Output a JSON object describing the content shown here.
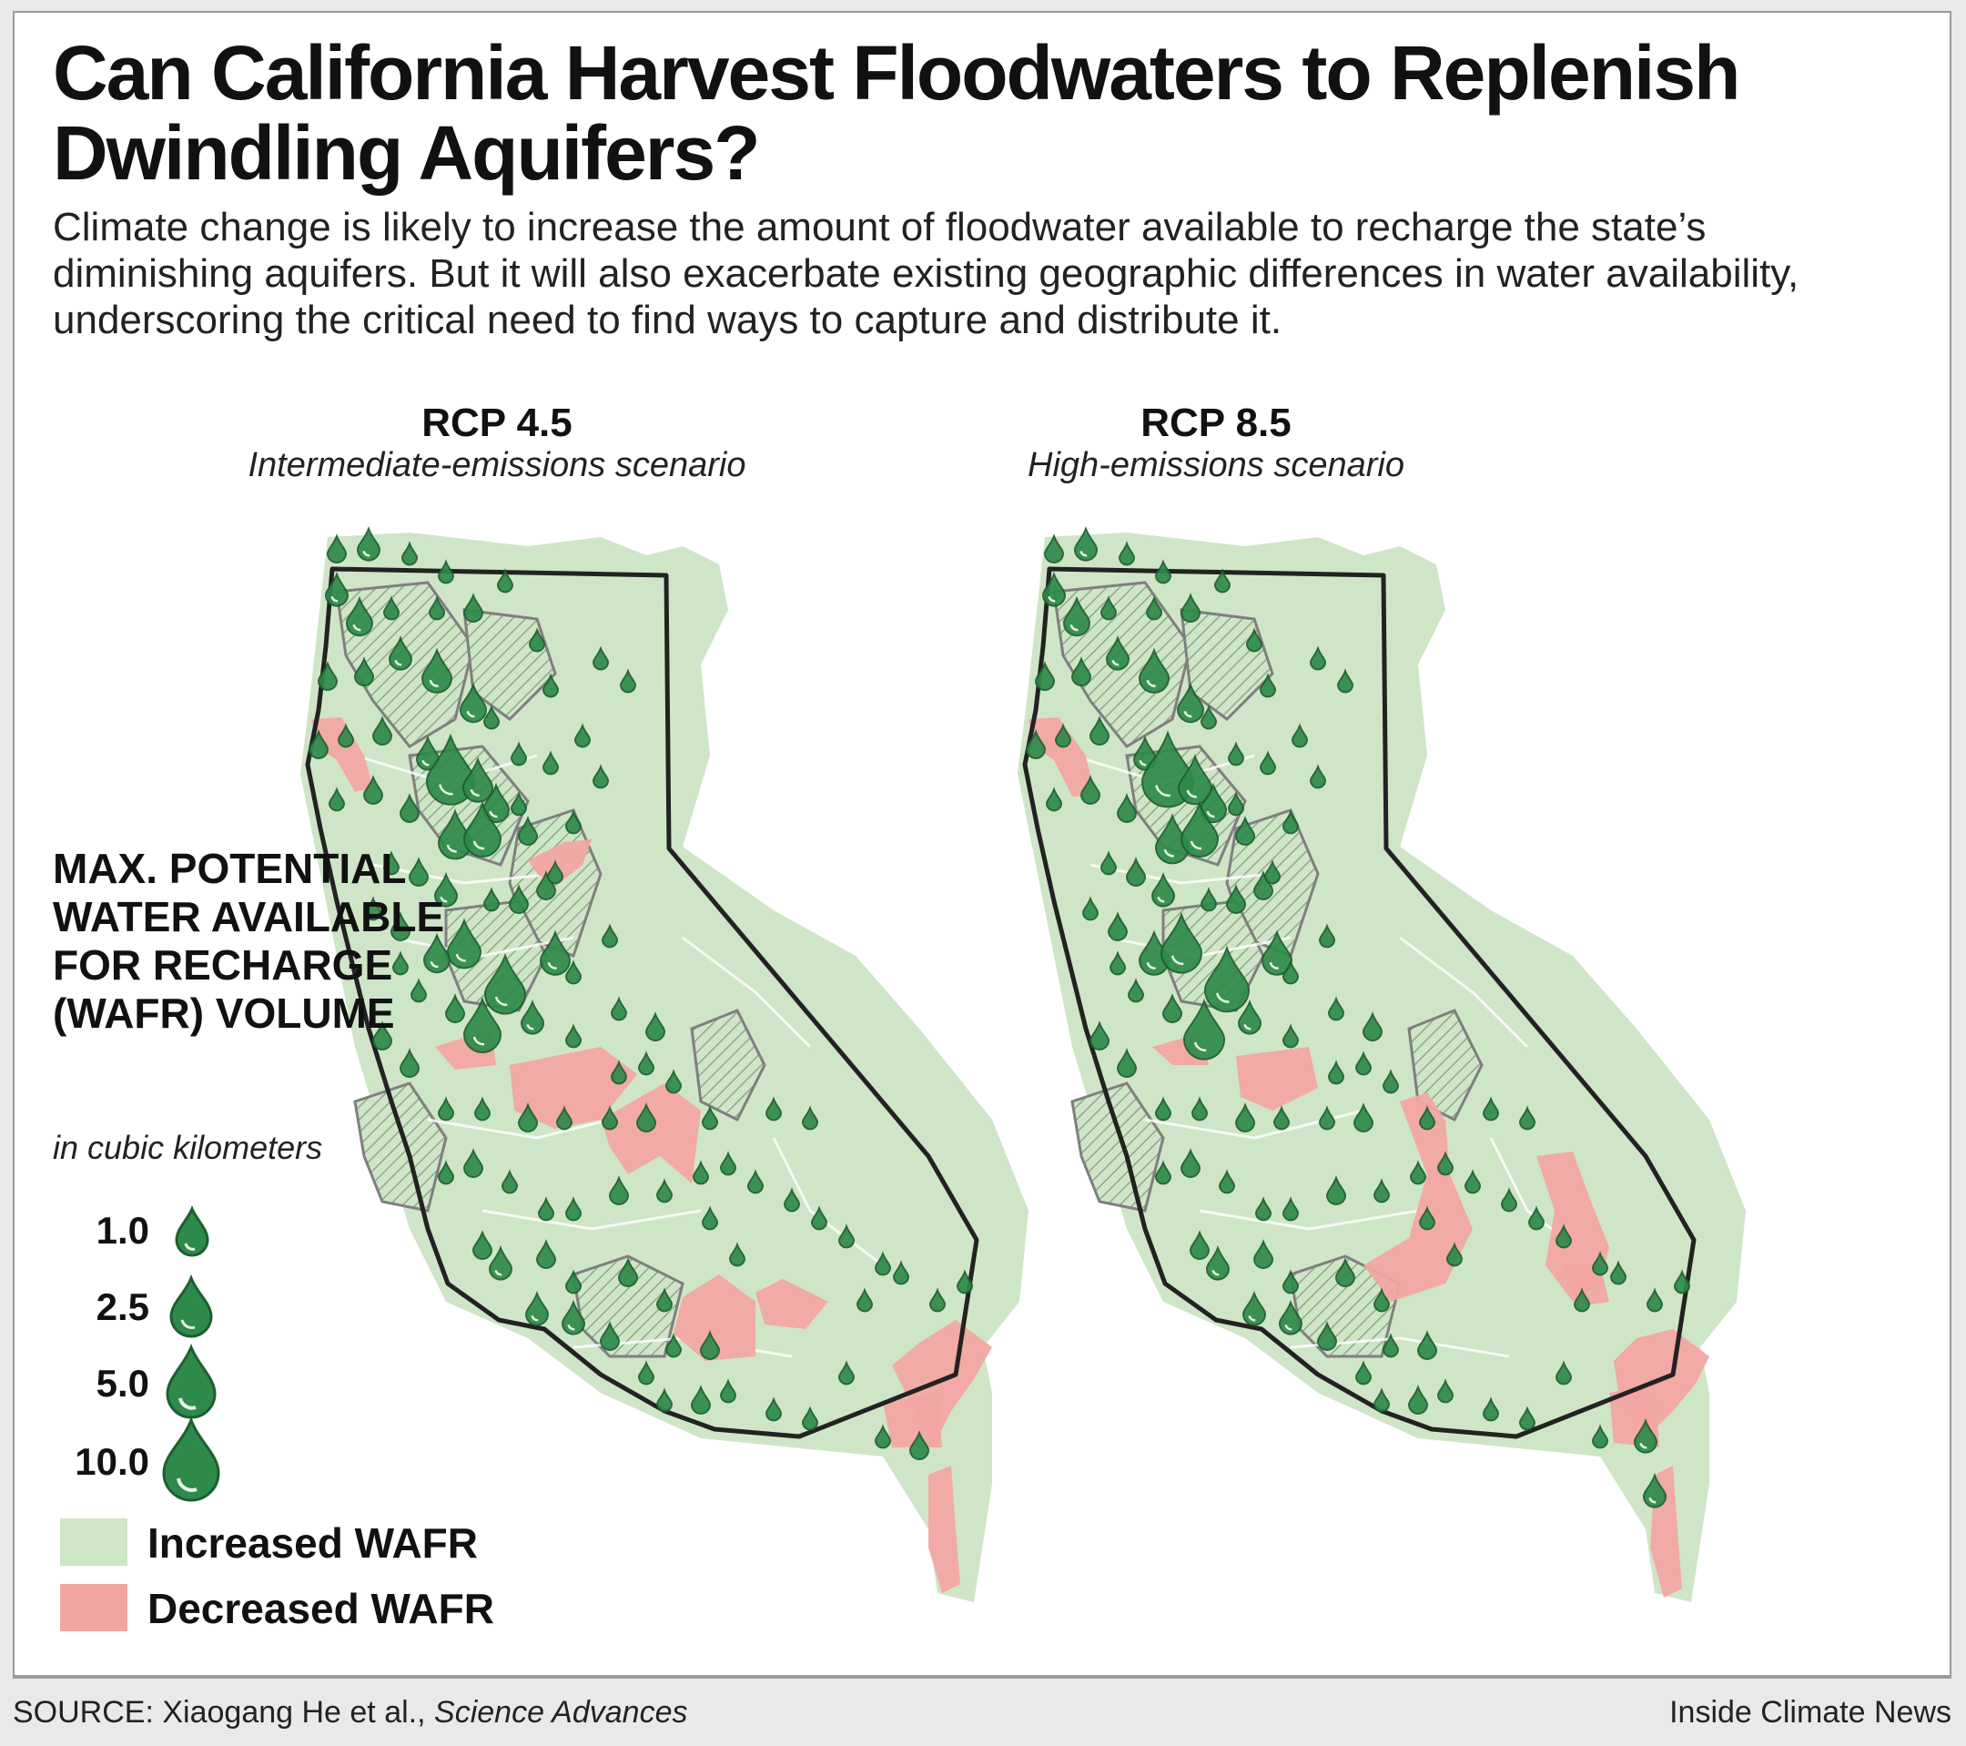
{
  "title": "Can California Harvest Floodwaters to Replenish Dwindling Aquifers?",
  "subtitle": "Climate change is likely to increase the amount of floodwater available to recharge the state’s diminishing aquifers. But it will also exacerbate existing geographic differences in water availability, underscoring the critical need to find ways to capture and distribute it.",
  "maps": [
    {
      "title": "RCP 4.5",
      "subtitle": "Intermediate-emissions scenario"
    },
    {
      "title": "RCP 8.5",
      "subtitle": "High-emissions scenario"
    }
  ],
  "legend": {
    "title": "MAX. POTENTIAL WATER AVAILABLE FOR RECHARGE (WAFR) VOLUME",
    "unit": "in cubic kilometers",
    "sizes": [
      "1.0",
      "2.5",
      "5.0",
      "10.0"
    ],
    "increased": "Increased WAFR",
    "decreased": "Decreased WAFR"
  },
  "colors": {
    "increased": "#cfe5c7",
    "decreased": "#f2a6a4",
    "drop": "#2e8a4a",
    "drop_dark": "#1d5e31",
    "outline": "#222222"
  },
  "source": {
    "prefix": "SOURCE: Xiaogang He et al., ",
    "journal": "Science Advances"
  },
  "credit": "Inside Climate News"
}
